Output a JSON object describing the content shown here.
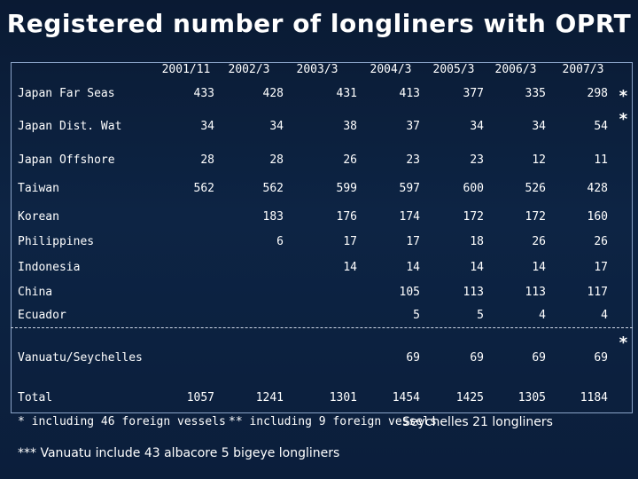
{
  "title": "Registered number of longliners with OPRT",
  "years": [
    "2001/11",
    "2002/3",
    "2003/3",
    "2004/3",
    "2005/3",
    "2006/3",
    "2007/3"
  ],
  "rows": [
    {
      "label": "Japan Far Seas",
      "values": [
        "433",
        "428",
        "431",
        "413",
        "377",
        "335",
        "298"
      ]
    },
    {
      "label": "Japan Dist. Wat",
      "values": [
        "34",
        "34",
        "38",
        "37",
        "34",
        "34",
        "54"
      ]
    },
    {
      "label": "Japan Offshore",
      "values": [
        "28",
        "28",
        "26",
        "23",
        "23",
        "12",
        "11"
      ]
    },
    {
      "label": "Taiwan",
      "values": [
        "562",
        "562",
        "599",
        "597",
        "600",
        "526",
        "428"
      ]
    },
    {
      "label": "Korean",
      "values": [
        "",
        "183",
        "176",
        "174",
        "172",
        "172",
        "160"
      ]
    },
    {
      "label": "Philippines",
      "values": [
        "",
        "6",
        "17",
        "17",
        "18",
        "26",
        "26"
      ]
    },
    {
      "label": "Indonesia",
      "values": [
        "",
        "",
        "14",
        "14",
        "14",
        "14",
        "17"
      ]
    },
    {
      "label": "China",
      "values": [
        "",
        "",
        "",
        "105",
        "113",
        "113",
        "117"
      ]
    },
    {
      "label": "Ecuador",
      "values": [
        "",
        "",
        "",
        "5",
        "5",
        "4",
        "4"
      ]
    },
    {
      "label": "Vanuatu/Seychelles",
      "values": [
        "",
        "",
        "",
        "69",
        "69",
        "69",
        "69"
      ]
    }
  ],
  "total": {
    "label": "Total",
    "values": [
      "1057",
      "1241",
      "1301",
      "1454",
      "1425",
      "1305",
      "1184"
    ]
  },
  "stars": {
    "far_seas": "*",
    "dist_wat": "*",
    "vanuatu": "*"
  },
  "footnotes": {
    "f1": "* including 46 foreign vessels",
    "f2": "** including 9 foreign vessels",
    "f2b": "Seychelles 21 longliners",
    "f3": "*** Vanuatu include 43 albacore 5 bigeye longliners"
  }
}
